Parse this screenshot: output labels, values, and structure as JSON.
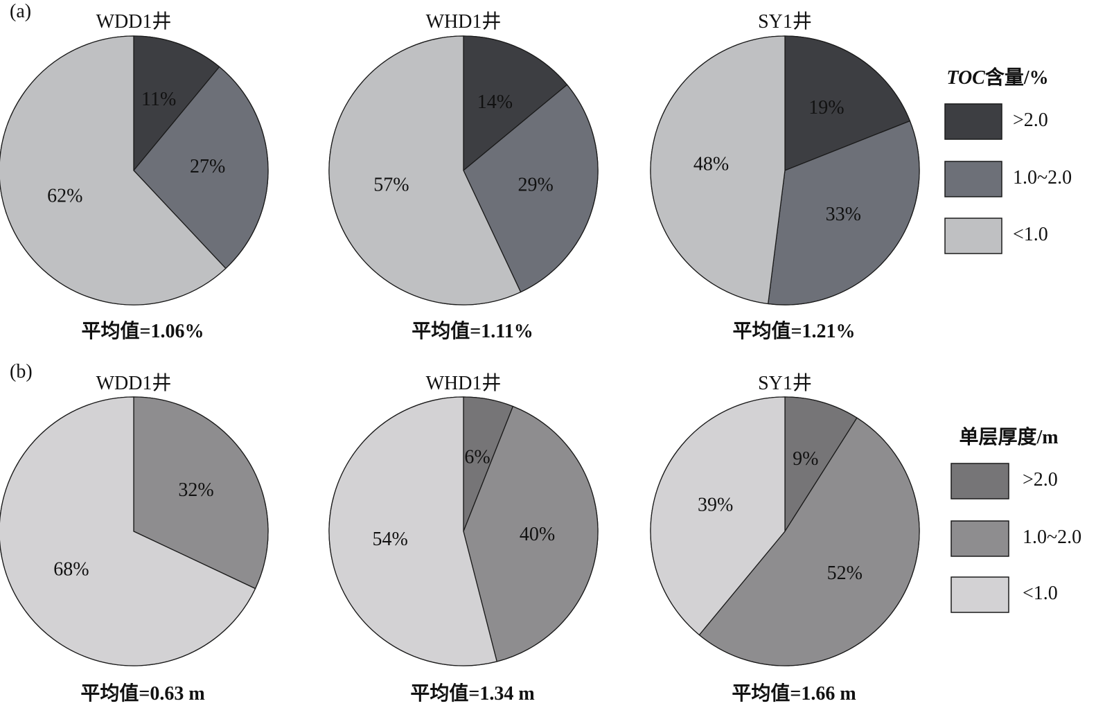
{
  "chart_data": [
    {
      "type": "pie",
      "panel": "(a)",
      "legend": {
        "title_italic": "TOC",
        "title_rest": "含量/%",
        "categories": [
          ">2.0",
          "1.0~2.0",
          "<1.0"
        ],
        "colors": [
          "#3d3e42",
          "#6d7078",
          "#bfc0c2"
        ]
      },
      "pies": [
        {
          "title": "WDD1井",
          "values": [
            11,
            27,
            62
          ],
          "labels": [
            "11%",
            "27%",
            "62%"
          ],
          "mean": "平均值=1.06%"
        },
        {
          "title": "WHD1井",
          "values": [
            14,
            29,
            57
          ],
          "labels": [
            "14%",
            "29%",
            "57%"
          ],
          "mean": "平均值=1.11%"
        },
        {
          "title": "SY1井",
          "values": [
            19,
            33,
            48
          ],
          "labels": [
            "19%",
            "33%",
            "48%"
          ],
          "mean": "平均值=1.21%"
        }
      ]
    },
    {
      "type": "pie",
      "panel": "(b)",
      "legend": {
        "title": "单层厚度/m",
        "categories": [
          ">2.0",
          "1.0~2.0",
          "<1.0"
        ],
        "colors": [
          "#767577",
          "#8e8d8f",
          "#d3d2d4"
        ]
      },
      "pies": [
        {
          "title": "WDD1井",
          "values": [
            0,
            32,
            68
          ],
          "labels": [
            "",
            "32%",
            "68%"
          ],
          "mean": "平均值=0.63 m"
        },
        {
          "title": "WHD1井",
          "values": [
            6,
            40,
            54
          ],
          "labels": [
            "6%",
            "40%",
            "54%"
          ],
          "mean": "平均值=1.34 m"
        },
        {
          "title": "SY1井",
          "values": [
            9,
            52,
            39
          ],
          "labels": [
            "9%",
            "52%",
            "39%"
          ],
          "mean": "平均值=1.66 m"
        }
      ]
    }
  ]
}
